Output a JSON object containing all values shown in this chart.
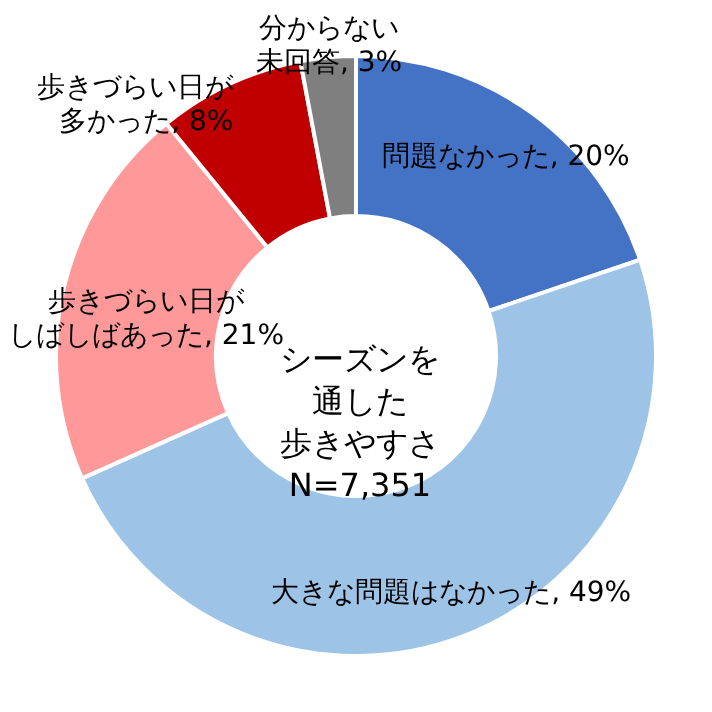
{
  "chart_data": {
    "type": "donut",
    "title": "シーズンを通した歩きやすさN=7,351",
    "categories": [
      "問題なかった",
      "大きな問題はなかった",
      "歩きづらい日がしばしばあった",
      "歩きづらい日が多かった",
      "分からない未回答"
    ],
    "values": [
      20,
      49,
      21,
      8,
      3
    ],
    "value_labels": [
      "20%",
      "49%",
      "21%",
      "8%",
      "3%"
    ],
    "colors": [
      "#4472c4",
      "#9dc3e6",
      "#ff9999",
      "#c00000",
      "#7f7f7f"
    ]
  }
}
